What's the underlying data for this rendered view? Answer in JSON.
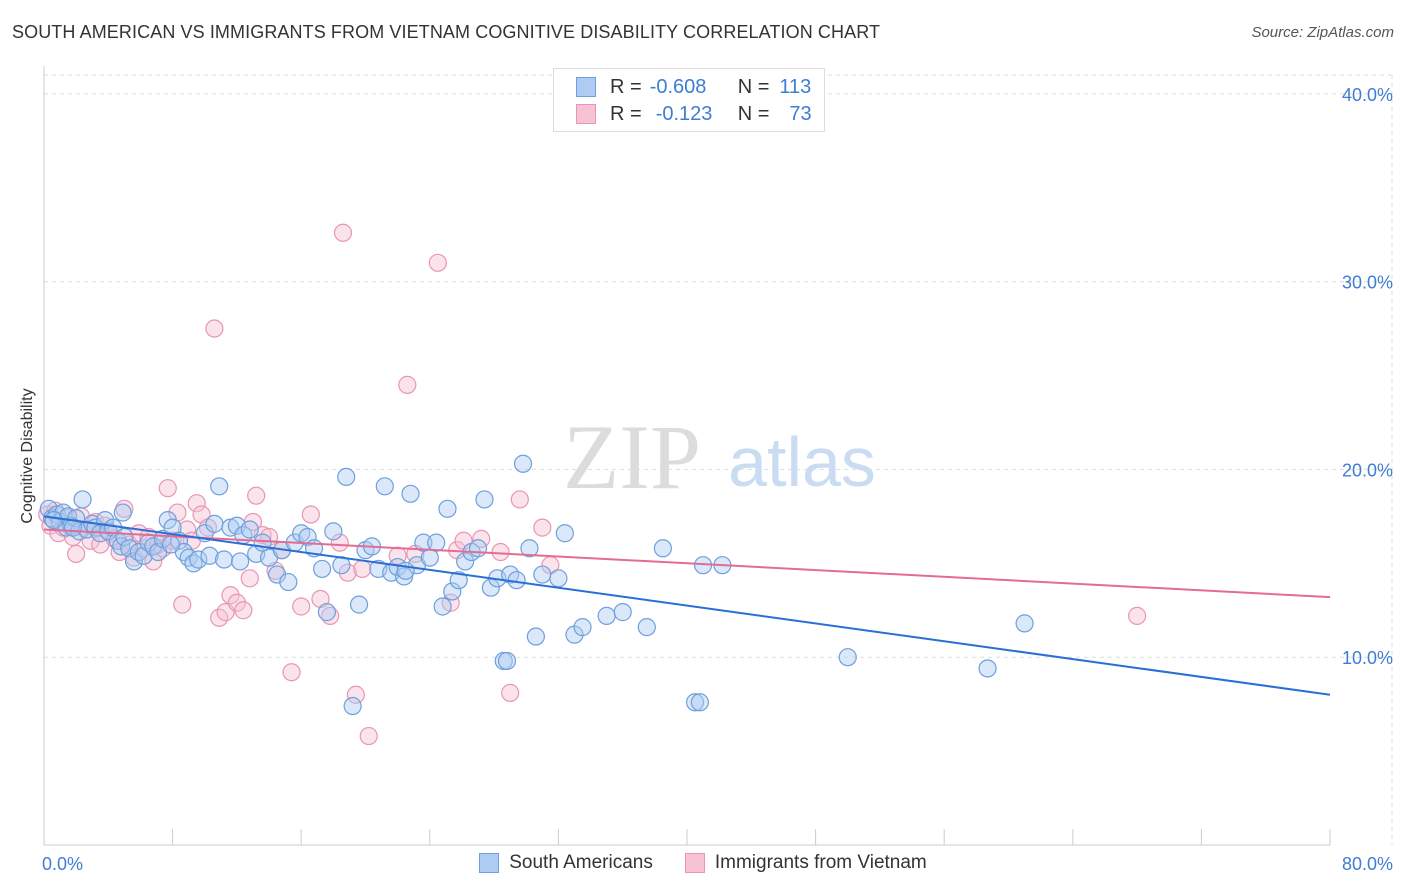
{
  "title": "SOUTH AMERICAN VS IMMIGRANTS FROM VIETNAM COGNITIVE DISABILITY CORRELATION CHART",
  "source": "Source: ZipAtlas.com",
  "watermark": {
    "part1": "ZIP",
    "part2": "atlas"
  },
  "legend_top": {
    "rows": [
      {
        "r_label": "R =",
        "r_value": "-0.608",
        "n_label": "N =",
        "n_value": "113"
      },
      {
        "r_label": "R =",
        "r_value": "-0.123",
        "n_label": "N =",
        "n_value": "73"
      }
    ]
  },
  "colors": {
    "blue_fill": "#aecbf2",
    "blue_stroke": "#6f9fdd",
    "blue_line": "#2a6fd6",
    "pink_fill": "#f6c2d4",
    "pink_stroke": "#e896b4",
    "pink_line": "#e36c95",
    "axis_label": "#3f7dd4",
    "grid": "#dddddd"
  },
  "chart_data": {
    "type": "scatter",
    "title": "SOUTH AMERICAN VS IMMIGRANTS FROM VIETNAM COGNITIVE DISABILITY CORRELATION CHART",
    "xlabel": "",
    "ylabel": "Cognitive Disability",
    "xlim": [
      0,
      80
    ],
    "ylim": [
      0,
      41
    ],
    "x_ticks": [
      0,
      80
    ],
    "x_tick_labels": [
      "0.0%",
      "80.0%"
    ],
    "y_ticks": [
      10,
      20,
      30,
      40
    ],
    "y_tick_labels": [
      "10.0%",
      "20.0%",
      "30.0%",
      "40.0%"
    ],
    "grid": true,
    "legend_position": "bottom",
    "series": [
      {
        "name": "South Americans",
        "r": -0.608,
        "n": 113,
        "trend": {
          "x": [
            0,
            80
          ],
          "y": [
            17.5,
            8.0
          ]
        },
        "points": [
          [
            0.3,
            17.9
          ],
          [
            0.5,
            17.4
          ],
          [
            0.8,
            17.6
          ],
          [
            1.0,
            17.2
          ],
          [
            1.2,
            17.7
          ],
          [
            1.4,
            16.9
          ],
          [
            1.5,
            17.5
          ],
          [
            1.7,
            17.0
          ],
          [
            2.0,
            17.4
          ],
          [
            2.2,
            16.7
          ],
          [
            2.4,
            18.4
          ],
          [
            2.7,
            16.8
          ],
          [
            3.0,
            17.1
          ],
          [
            3.2,
            16.9
          ],
          [
            3.5,
            16.6
          ],
          [
            3.8,
            17.3
          ],
          [
            4.0,
            16.7
          ],
          [
            4.3,
            16.9
          ],
          [
            4.6,
            16.2
          ],
          [
            4.8,
            15.9
          ],
          [
            5.0,
            16.4
          ],
          [
            5.3,
            15.8
          ],
          [
            5.6,
            15.1
          ],
          [
            5.9,
            15.6
          ],
          [
            6.2,
            15.4
          ],
          [
            6.5,
            16.1
          ],
          [
            6.8,
            15.9
          ],
          [
            7.1,
            15.6
          ],
          [
            7.4,
            16.3
          ],
          [
            7.7,
            17.3
          ],
          [
            8.0,
            16.9
          ],
          [
            8.4,
            16.2
          ],
          [
            8.7,
            15.6
          ],
          [
            9.0,
            15.3
          ],
          [
            9.3,
            15.0
          ],
          [
            9.6,
            15.2
          ],
          [
            10.0,
            16.6
          ],
          [
            10.3,
            15.4
          ],
          [
            10.6,
            17.1
          ],
          [
            10.9,
            19.1
          ],
          [
            11.2,
            15.2
          ],
          [
            11.6,
            16.9
          ],
          [
            12.0,
            17.0
          ],
          [
            12.4,
            16.5
          ],
          [
            12.8,
            16.8
          ],
          [
            13.2,
            15.5
          ],
          [
            13.6,
            16.1
          ],
          [
            14.0,
            15.3
          ],
          [
            14.5,
            14.4
          ],
          [
            14.8,
            15.7
          ],
          [
            15.2,
            14.0
          ],
          [
            15.6,
            16.1
          ],
          [
            16.0,
            16.6
          ],
          [
            16.4,
            16.4
          ],
          [
            16.8,
            15.8
          ],
          [
            17.3,
            14.7
          ],
          [
            17.6,
            12.4
          ],
          [
            18.0,
            16.7
          ],
          [
            18.5,
            14.9
          ],
          [
            18.8,
            19.6
          ],
          [
            19.2,
            7.4
          ],
          [
            19.6,
            12.8
          ],
          [
            20.0,
            15.7
          ],
          [
            20.4,
            15.9
          ],
          [
            20.8,
            14.7
          ],
          [
            21.2,
            19.1
          ],
          [
            21.6,
            14.5
          ],
          [
            22.0,
            14.8
          ],
          [
            22.4,
            14.3
          ],
          [
            22.8,
            18.7
          ],
          [
            23.2,
            14.9
          ],
          [
            23.6,
            16.1
          ],
          [
            24.0,
            15.3
          ],
          [
            24.4,
            16.1
          ],
          [
            24.8,
            12.7
          ],
          [
            25.1,
            17.9
          ],
          [
            25.4,
            13.5
          ],
          [
            25.8,
            14.1
          ],
          [
            26.2,
            15.1
          ],
          [
            26.6,
            15.6
          ],
          [
            27.0,
            15.8
          ],
          [
            27.4,
            18.4
          ],
          [
            27.8,
            13.7
          ],
          [
            28.2,
            14.2
          ],
          [
            28.6,
            9.8
          ],
          [
            28.8,
            9.8
          ],
          [
            29.0,
            14.4
          ],
          [
            29.4,
            14.1
          ],
          [
            29.8,
            20.3
          ],
          [
            30.2,
            15.8
          ],
          [
            30.6,
            11.1
          ],
          [
            31.0,
            14.4
          ],
          [
            32.0,
            14.2
          ],
          [
            32.4,
            16.6
          ],
          [
            33.0,
            11.2
          ],
          [
            33.5,
            11.6
          ],
          [
            35.0,
            12.2
          ],
          [
            36.0,
            12.4
          ],
          [
            37.5,
            11.6
          ],
          [
            38.5,
            15.8
          ],
          [
            40.5,
            7.6
          ],
          [
            40.8,
            7.6
          ],
          [
            41.0,
            14.9
          ],
          [
            42.2,
            14.9
          ],
          [
            50.0,
            10.0
          ],
          [
            58.7,
            9.4
          ],
          [
            61.0,
            11.8
          ],
          [
            0.6,
            17.3
          ],
          [
            1.8,
            16.9
          ],
          [
            4.9,
            17.7
          ],
          [
            7.9,
            16.0
          ],
          [
            12.2,
            15.1
          ],
          [
            22.5,
            14.6
          ]
        ]
      },
      {
        "name": "Immigrants from Vietnam",
        "r": -0.123,
        "n": 73,
        "trend": {
          "x": [
            0,
            80
          ],
          "y": [
            16.8,
            13.2
          ]
        },
        "points": [
          [
            0.2,
            17.6
          ],
          [
            0.4,
            17.0
          ],
          [
            0.7,
            17.8
          ],
          [
            0.9,
            16.6
          ],
          [
            1.2,
            16.9
          ],
          [
            1.5,
            17.4
          ],
          [
            1.8,
            16.4
          ],
          [
            2.0,
            15.5
          ],
          [
            2.3,
            17.5
          ],
          [
            2.6,
            16.8
          ],
          [
            2.9,
            16.2
          ],
          [
            3.2,
            17.2
          ],
          [
            3.5,
            16.0
          ],
          [
            3.8,
            17.0
          ],
          [
            4.1,
            16.6
          ],
          [
            4.4,
            16.3
          ],
          [
            4.7,
            15.6
          ],
          [
            5.0,
            17.9
          ],
          [
            5.3,
            16.0
          ],
          [
            5.6,
            15.3
          ],
          [
            5.9,
            16.6
          ],
          [
            6.2,
            15.8
          ],
          [
            6.5,
            16.4
          ],
          [
            6.8,
            15.1
          ],
          [
            7.1,
            16.0
          ],
          [
            7.4,
            15.8
          ],
          [
            7.7,
            19.0
          ],
          [
            8.0,
            16.2
          ],
          [
            8.3,
            17.7
          ],
          [
            8.6,
            12.8
          ],
          [
            8.9,
            16.8
          ],
          [
            9.2,
            16.2
          ],
          [
            9.5,
            18.2
          ],
          [
            9.8,
            17.6
          ],
          [
            10.2,
            16.9
          ],
          [
            10.6,
            27.5
          ],
          [
            10.9,
            12.1
          ],
          [
            11.3,
            12.4
          ],
          [
            11.6,
            13.3
          ],
          [
            12.0,
            12.9
          ],
          [
            12.4,
            12.5
          ],
          [
            12.8,
            14.2
          ],
          [
            13.2,
            18.6
          ],
          [
            13.6,
            16.5
          ],
          [
            14.0,
            16.4
          ],
          [
            14.4,
            14.6
          ],
          [
            14.8,
            15.7
          ],
          [
            15.4,
            9.2
          ],
          [
            16.0,
            12.7
          ],
          [
            16.6,
            17.6
          ],
          [
            17.2,
            13.1
          ],
          [
            17.8,
            12.2
          ],
          [
            18.4,
            16.1
          ],
          [
            18.6,
            32.6
          ],
          [
            18.9,
            14.5
          ],
          [
            19.4,
            8.0
          ],
          [
            19.8,
            14.7
          ],
          [
            20.2,
            5.8
          ],
          [
            22.0,
            15.4
          ],
          [
            22.6,
            24.5
          ],
          [
            23.1,
            15.5
          ],
          [
            24.5,
            31.0
          ],
          [
            25.3,
            12.9
          ],
          [
            25.7,
            15.7
          ],
          [
            26.1,
            16.2
          ],
          [
            27.2,
            16.3
          ],
          [
            28.4,
            15.6
          ],
          [
            29.0,
            8.1
          ],
          [
            29.6,
            18.4
          ],
          [
            31.0,
            16.9
          ],
          [
            31.5,
            14.9
          ],
          [
            68.0,
            12.2
          ],
          [
            13.0,
            17.2
          ]
        ]
      }
    ]
  },
  "legend_bottom": [
    {
      "label": "South Americans"
    },
    {
      "label": "Immigrants from Vietnam"
    }
  ]
}
